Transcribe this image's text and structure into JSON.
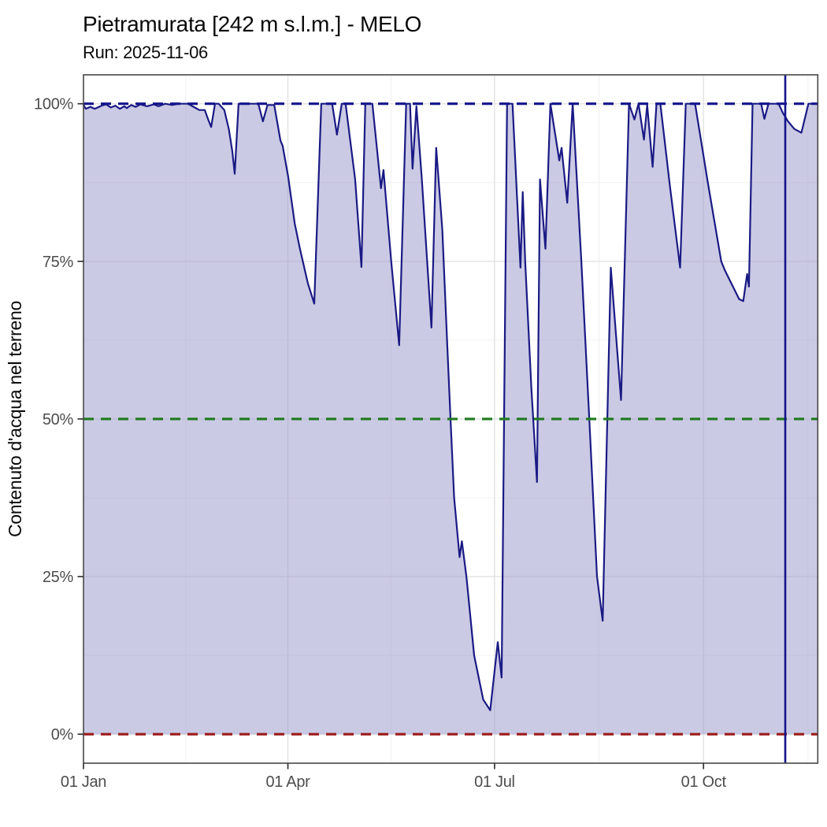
{
  "chart_data": {
    "type": "area",
    "title": "Pietramurata [242 m s.l.m.] - MELO",
    "subtitle": "Run: 2025-11-06",
    "x_axis": {
      "unit": "days_since_start",
      "start_date": "2025-01-01",
      "range_days": [
        0,
        323.3
      ],
      "major_ticks": [
        {
          "day": 0,
          "label": "01 Jan"
        },
        {
          "day": 90,
          "label": "01 Apr"
        },
        {
          "day": 181,
          "label": "01 Jul"
        },
        {
          "day": 273,
          "label": "01 Oct"
        }
      ],
      "minor_tick_days": [
        45,
        135.5,
        227,
        319
      ]
    },
    "y_axis": {
      "label": "Contenuto d'acqua nel terreno",
      "unit": "%",
      "range_pct": [
        -4.6,
        104.6
      ],
      "major_ticks": [
        {
          "value": 0,
          "label": "0%"
        },
        {
          "value": 25,
          "label": "25%"
        },
        {
          "value": 50,
          "label": "50%"
        },
        {
          "value": 75,
          "label": "75%"
        },
        {
          "value": 100,
          "label": "100%"
        }
      ],
      "minor_tick_values": [
        12.5,
        37.5,
        62.5,
        87.5
      ]
    },
    "reference_lines": [
      {
        "value": 100,
        "color": "#14148c",
        "style": "dashed"
      },
      {
        "value": 50,
        "color": "#1e7b1e",
        "style": "dashed"
      },
      {
        "value": 0,
        "color": "#9c1a1a",
        "style": "dashed"
      }
    ],
    "run_marker": {
      "date": "2025-11-06",
      "day": 309,
      "orientation": "vertical",
      "color": "#14148c",
      "style": "solid"
    },
    "series": [
      {
        "name": "soil-water-content",
        "line_color": "#1a1a85",
        "fill_color": "#9795c9",
        "fill_opacity": 0.5,
        "points": [
          [
            0,
            99.8
          ],
          [
            1,
            99.2
          ],
          [
            3,
            99.5
          ],
          [
            5,
            99.2
          ],
          [
            8,
            99.7
          ],
          [
            10,
            99.9
          ],
          [
            12,
            99.4
          ],
          [
            14,
            99.7
          ],
          [
            16,
            99.2
          ],
          [
            18,
            99.6
          ],
          [
            19,
            99.3
          ],
          [
            21,
            99.8
          ],
          [
            23,
            99.5
          ],
          [
            25,
            99.9
          ],
          [
            28,
            99.6
          ],
          [
            31,
            99.9
          ],
          [
            33,
            99.6
          ],
          [
            36,
            100
          ],
          [
            39,
            99.8
          ],
          [
            42,
            100
          ],
          [
            46,
            100
          ],
          [
            49,
            99.4
          ],
          [
            51,
            99
          ],
          [
            53.4,
            99
          ],
          [
            54.8,
            97.6
          ],
          [
            56.2,
            96.3
          ],
          [
            57.9,
            100
          ],
          [
            59.5,
            100
          ],
          [
            62,
            99
          ],
          [
            64,
            96
          ],
          [
            65.5,
            92.5
          ],
          [
            66.6,
            88.9
          ],
          [
            68.3,
            100
          ],
          [
            72,
            100
          ],
          [
            75,
            100
          ],
          [
            77,
            100
          ],
          [
            79,
            97.2
          ],
          [
            81,
            99.8
          ],
          [
            84,
            99.8
          ],
          [
            86.7,
            94.2
          ],
          [
            87.7,
            93.3
          ],
          [
            90.1,
            88.5
          ],
          [
            93,
            81
          ],
          [
            95.3,
            77
          ],
          [
            98.8,
            71.5
          ],
          [
            101.6,
            68.3
          ],
          [
            104.7,
            100
          ],
          [
            109.5,
            100
          ],
          [
            111.6,
            95.1
          ],
          [
            113.7,
            100
          ],
          [
            115.4,
            100
          ],
          [
            119.6,
            88
          ],
          [
            122.4,
            74.1
          ],
          [
            124.1,
            100
          ],
          [
            127.2,
            100
          ],
          [
            131,
            86.6
          ],
          [
            132.1,
            89.5
          ],
          [
            135.5,
            75
          ],
          [
            139,
            61.7
          ],
          [
            142.1,
            100
          ],
          [
            143.8,
            100
          ],
          [
            144.9,
            89.7
          ],
          [
            146.6,
            99.6
          ],
          [
            149,
            88
          ],
          [
            153.2,
            64.5
          ],
          [
            155.3,
            93
          ],
          [
            158,
            80
          ],
          [
            160.1,
            62.5
          ],
          [
            161.6,
            50
          ],
          [
            163.2,
            37.5
          ],
          [
            165.6,
            28.1
          ],
          [
            166.6,
            30.6
          ],
          [
            168.6,
            25
          ],
          [
            172,
            12.5
          ],
          [
            176,
            5.5
          ],
          [
            179.1,
            3.8
          ],
          [
            182.4,
            14.6
          ],
          [
            184.1,
            9
          ],
          [
            186.5,
            100
          ],
          [
            188.9,
            100
          ],
          [
            192.4,
            74
          ],
          [
            193.4,
            86
          ],
          [
            194.5,
            75
          ],
          [
            197.2,
            55
          ],
          [
            199.7,
            40
          ],
          [
            201,
            88
          ],
          [
            203.4,
            77
          ],
          [
            205.6,
            100
          ],
          [
            209.5,
            91
          ],
          [
            210.5,
            93
          ],
          [
            213,
            84.3
          ],
          [
            215.4,
            100
          ],
          [
            219.2,
            75
          ],
          [
            222.7,
            50
          ],
          [
            226.1,
            25
          ],
          [
            228.6,
            18
          ],
          [
            232.2,
            74
          ],
          [
            236.7,
            53
          ],
          [
            240.2,
            100
          ],
          [
            242.6,
            97.5
          ],
          [
            244.4,
            100
          ],
          [
            246.8,
            94.3
          ],
          [
            248.2,
            99.8
          ],
          [
            250.6,
            90
          ],
          [
            252.3,
            100
          ],
          [
            254,
            100
          ],
          [
            258.2,
            87
          ],
          [
            262.7,
            74
          ],
          [
            265.2,
            100
          ],
          [
            269.3,
            100
          ],
          [
            274.9,
            87.5
          ],
          [
            280.8,
            75
          ],
          [
            282.5,
            73.5
          ],
          [
            288.7,
            69
          ],
          [
            290.5,
            68.7
          ],
          [
            292.2,
            73
          ],
          [
            293,
            71
          ],
          [
            294.6,
            100
          ],
          [
            298.4,
            100
          ],
          [
            299.8,
            97.6
          ],
          [
            301.6,
            100
          ],
          [
            306.1,
            100
          ],
          [
            308,
            98.5
          ],
          [
            310.2,
            97.2
          ],
          [
            313,
            96
          ],
          [
            316.1,
            95.4
          ],
          [
            319.2,
            100
          ],
          [
            323.3,
            100
          ]
        ]
      }
    ],
    "grid": {
      "major_color": "#e4e4e4",
      "minor_color": "#f0f0f0",
      "panel_border_color": "#484848",
      "tick_color": "#333333"
    },
    "legend": "none"
  }
}
